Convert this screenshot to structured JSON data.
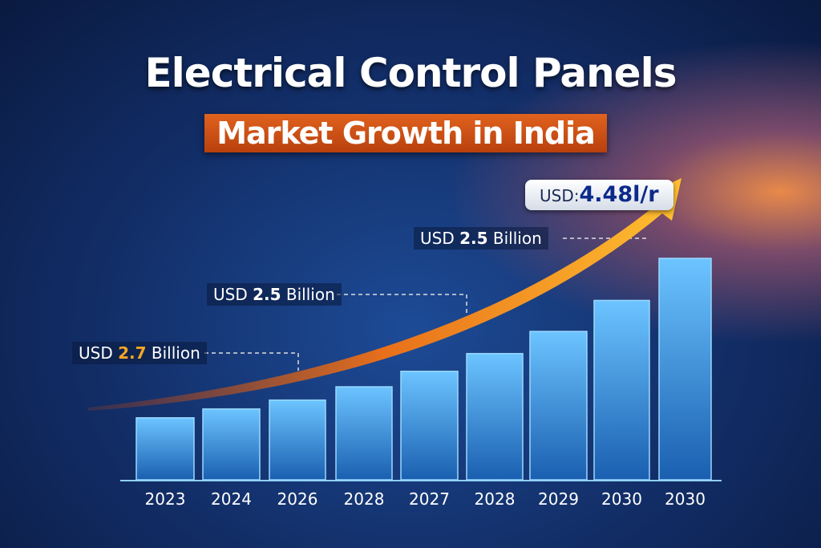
{
  "header": {
    "title": "Electrical Control Panels",
    "subtitle": "Market Growth in India"
  },
  "colors": {
    "bar": "#3a9be0",
    "arrow": "#f5a020",
    "banner": "#d0541a",
    "background": "#122d66"
  },
  "chart_data": {
    "type": "bar",
    "categories": [
      "2023",
      "2024",
      "2026",
      "2028",
      "2027",
      "2028",
      "2029",
      "2030",
      "2030"
    ],
    "values": [
      28,
      32,
      36,
      42,
      49,
      57,
      67,
      81,
      100
    ],
    "value_note": "relative heights; no y-axis printed",
    "grid": false,
    "trend_arrow": true,
    "annotations": [
      {
        "prefix": "USD",
        "value": "2.7",
        "suffix": "Billion",
        "value_color": "#f5a623"
      },
      {
        "prefix": "USD",
        "value": "2.5",
        "suffix": "Billion",
        "value_color": "#ffffff"
      },
      {
        "prefix": "USD",
        "value": "2.5",
        "suffix": "Billion",
        "value_color": "#ffffff"
      }
    ],
    "callout": {
      "prefix": "USD:",
      "value": "4.48",
      "suffix": "l/r"
    }
  }
}
